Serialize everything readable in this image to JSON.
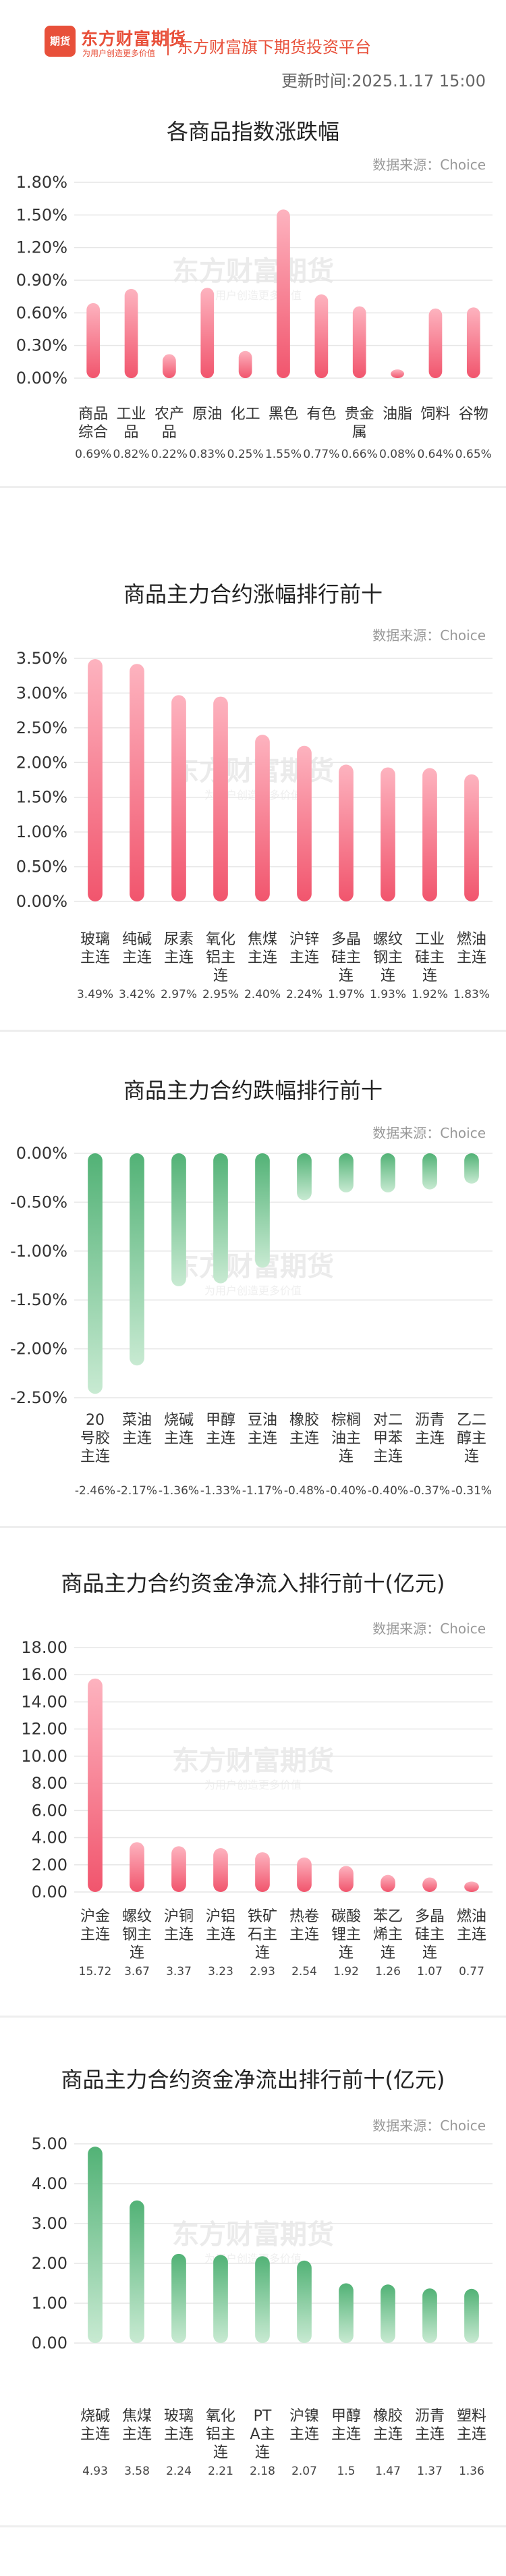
{
  "header": {
    "logo_text": "期货",
    "brand": "东方财富期货",
    "brand_sub": "为用户创造更多价值",
    "platform": "东方财富旗下期货投资平台",
    "update_label": "更新时间:",
    "update_time": "2025.1.17 15:00"
  },
  "watermark": {
    "title": "东方财富期货",
    "subtitle": "为用户创造更多价值"
  },
  "colors": {
    "up": "#f1556d",
    "down": "#52b276",
    "grid": "#e6e6e6"
  },
  "chart_data": [
    {
      "type": "bar",
      "title": "各商品指数涨跌幅",
      "source": "数据来源：Choice",
      "categories": [
        "商品综合",
        "工业品",
        "农产品",
        "原油",
        "化工",
        "黑色",
        "有色",
        "贵金属",
        "油脂",
        "饲料",
        "谷物"
      ],
      "values": [
        0.69,
        0.82,
        0.22,
        0.83,
        0.25,
        1.55,
        0.77,
        0.66,
        0.08,
        0.64,
        0.65
      ],
      "value_labels": [
        "0.69%",
        "0.82%",
        "0.22%",
        "0.83%",
        "0.25%",
        "1.55%",
        "0.77%",
        "0.66%",
        "0.08%",
        "0.64%",
        "0.65%"
      ],
      "yticks": [
        "0.00%",
        "0.30%",
        "0.60%",
        "0.90%",
        "1.20%",
        "1.50%",
        "1.80%"
      ],
      "ylim": [
        0,
        1.8
      ],
      "color": "up"
    },
    {
      "type": "bar",
      "title": "商品主力合约涨幅排行前十",
      "source": "数据来源：Choice",
      "categories": [
        "玻璃主连",
        "纯碱主连",
        "尿素主连",
        "氧化铝主连",
        "焦煤主连",
        "沪锌主连",
        "多晶硅主连",
        "螺纹钢主连",
        "工业硅主连",
        "燃油主连"
      ],
      "values": [
        3.49,
        3.42,
        2.97,
        2.95,
        2.4,
        2.24,
        1.97,
        1.93,
        1.92,
        1.83
      ],
      "value_labels": [
        "3.49%",
        "3.42%",
        "2.97%",
        "2.95%",
        "2.40%",
        "2.24%",
        "1.97%",
        "1.93%",
        "1.92%",
        "1.83%"
      ],
      "yticks": [
        "0.00%",
        "0.50%",
        "1.00%",
        "1.50%",
        "2.00%",
        "2.50%",
        "3.00%",
        "3.50%"
      ],
      "ylim": [
        0,
        3.5
      ],
      "color": "up"
    },
    {
      "type": "bar",
      "title": "商品主力合约跌幅排行前十",
      "source": "数据来源：Choice",
      "categories": [
        "20号胶主连",
        "菜油主连",
        "烧碱主连",
        "甲醇主连",
        "豆油主连",
        "橡胶主连",
        "棕榈油主连",
        "对二甲苯主连",
        "沥青主连",
        "乙二醇主连"
      ],
      "values": [
        -2.46,
        -2.17,
        -1.36,
        -1.33,
        -1.17,
        -0.48,
        -0.4,
        -0.4,
        -0.37,
        -0.31
      ],
      "value_labels": [
        "-2.46%",
        "-2.17%",
        "-1.36%",
        "-1.33%",
        "-1.17%",
        "-0.48%",
        "-0.40%",
        "-0.40%",
        "-0.37%",
        "-0.31%"
      ],
      "yticks": [
        "0.00%",
        "-0.50%",
        "-1.00%",
        "-1.50%",
        "-2.00%",
        "-2.50%"
      ],
      "ylim": [
        -2.5,
        0
      ],
      "color": "down"
    },
    {
      "type": "bar",
      "title": "商品主力合约资金净流入排行前十(亿元)",
      "source": "数据来源：Choice",
      "categories": [
        "沪金主连",
        "螺纹钢主连",
        "沪铜主连",
        "沪铝主连",
        "铁矿石主连",
        "热卷主连",
        "碳酸锂主连",
        "苯乙烯主连",
        "多晶硅主连",
        "燃油主连"
      ],
      "values": [
        15.72,
        3.67,
        3.37,
        3.23,
        2.93,
        2.54,
        1.92,
        1.26,
        1.07,
        0.77
      ],
      "value_labels": [
        "15.72",
        "3.67",
        "3.37",
        "3.23",
        "2.93",
        "2.54",
        "1.92",
        "1.26",
        "1.07",
        "0.77"
      ],
      "yticks": [
        "0.00",
        "2.00",
        "4.00",
        "6.00",
        "8.00",
        "10.00",
        "12.00",
        "14.00",
        "16.00",
        "18.00"
      ],
      "ylim": [
        0,
        18
      ],
      "color": "up"
    },
    {
      "type": "bar",
      "title": "商品主力合约资金净流出排行前十(亿元)",
      "source": "数据来源：Choice",
      "categories": [
        "烧碱主连",
        "焦煤主连",
        "玻璃主连",
        "氧化铝主连",
        "PTA主连",
        "沪镍主连",
        "甲醇主连",
        "橡胶主连",
        "沥青主连",
        "塑料主连"
      ],
      "values": [
        4.93,
        3.58,
        2.24,
        2.21,
        2.18,
        2.07,
        1.5,
        1.47,
        1.37,
        1.36
      ],
      "value_labels": [
        "4.93",
        "3.58",
        "2.24",
        "2.21",
        "2.18",
        "2.07",
        "1.5",
        "1.47",
        "1.37",
        "1.36"
      ],
      "yticks": [
        "0.00",
        "1.00",
        "2.00",
        "3.00",
        "4.00",
        "5.00"
      ],
      "ylim": [
        0,
        5
      ],
      "color": "down"
    }
  ]
}
